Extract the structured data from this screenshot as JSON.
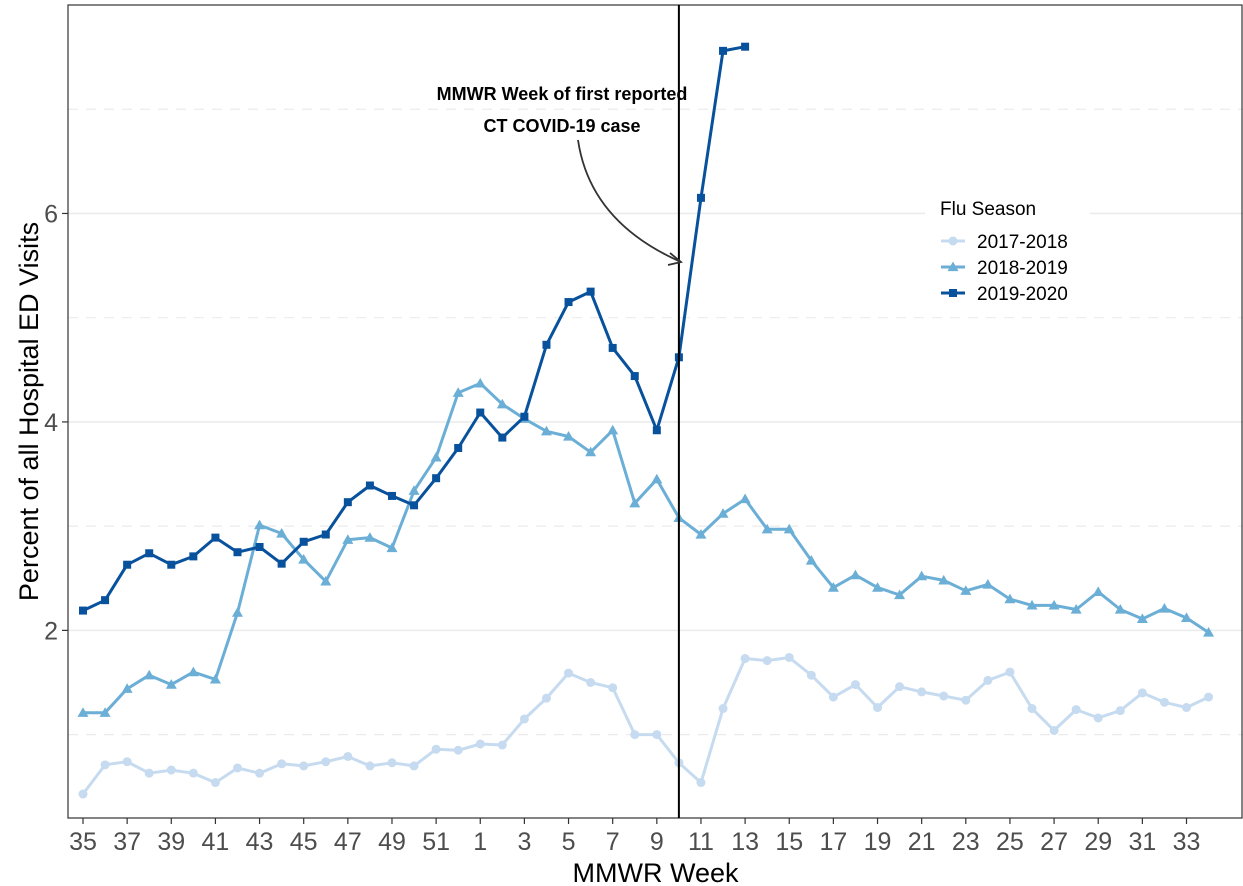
{
  "chart_data": {
    "type": "line",
    "xlabel": "MMWR Week",
    "ylabel": "Percent of all Hospital ED Visits",
    "x_tick_labels": [
      "35",
      "37",
      "39",
      "41",
      "43",
      "45",
      "47",
      "49",
      "51",
      "1",
      "3",
      "5",
      "7",
      "9",
      "11",
      "13",
      "15",
      "17",
      "19",
      "21",
      "23",
      "25",
      "27",
      "29",
      "31",
      "33"
    ],
    "y_tick_labels": [
      "2",
      "4",
      "6"
    ],
    "y_ticks": [
      2,
      4,
      6
    ],
    "ylim": [
      0.2,
      8.0
    ],
    "grid": "horizontal",
    "legend": {
      "title": "Flu Season",
      "position": "right"
    },
    "annotation": {
      "lines": [
        "MMWR Week of first reported",
        "CT COVID-19 case"
      ],
      "marks_week": "10"
    },
    "x": [
      "35",
      "36",
      "37",
      "38",
      "39",
      "40",
      "41",
      "42",
      "43",
      "44",
      "45",
      "46",
      "47",
      "48",
      "49",
      "50",
      "51",
      "52",
      "1",
      "2",
      "3",
      "4",
      "5",
      "6",
      "7",
      "8",
      "9",
      "10",
      "11",
      "12",
      "13",
      "14",
      "15",
      "16",
      "17",
      "18",
      "19",
      "20",
      "21",
      "22",
      "23",
      "24",
      "25",
      "26",
      "27",
      "28",
      "29",
      "30",
      "31",
      "32",
      "33",
      "34"
    ],
    "series": [
      {
        "name": "2017-2018",
        "color": "#c6dbef",
        "marker": "circle",
        "values": [
          0.43,
          0.71,
          0.74,
          0.63,
          0.66,
          0.63,
          0.54,
          0.68,
          0.63,
          0.72,
          0.7,
          0.74,
          0.79,
          0.7,
          0.73,
          0.7,
          0.86,
          0.85,
          0.91,
          0.9,
          1.15,
          1.35,
          1.59,
          1.5,
          1.45,
          1.0,
          1.0,
          0.73,
          0.54,
          1.25,
          1.73,
          1.71,
          1.74,
          1.57,
          1.36,
          1.48,
          1.26,
          1.46,
          1.41,
          1.37,
          1.33,
          1.52,
          1.6,
          1.25,
          1.04,
          1.24,
          1.16,
          1.23,
          1.4,
          1.31,
          1.26,
          1.36
        ]
      },
      {
        "name": "2018-2019",
        "color": "#6baed6",
        "marker": "triangle",
        "values": [
          1.21,
          1.21,
          1.44,
          1.57,
          1.48,
          1.6,
          1.53,
          2.17,
          3.01,
          2.93,
          2.68,
          2.47,
          2.87,
          2.89,
          2.79,
          3.34,
          3.66,
          4.28,
          4.37,
          4.17,
          4.03,
          3.91,
          3.86,
          3.71,
          3.92,
          3.22,
          3.45,
          3.08,
          2.92,
          3.12,
          3.26,
          2.97,
          2.97,
          2.67,
          2.41,
          2.53,
          2.41,
          2.34,
          2.52,
          2.48,
          2.38,
          2.44,
          2.3,
          2.24,
          2.24,
          2.2,
          2.37,
          2.2,
          2.11,
          2.21,
          2.12,
          1.98
        ]
      },
      {
        "name": "2019-2020",
        "color": "#08519c",
        "marker": "square",
        "values": [
          2.19,
          2.29,
          2.63,
          2.74,
          2.63,
          2.71,
          2.89,
          2.75,
          2.8,
          2.64,
          2.85,
          2.92,
          3.23,
          3.39,
          3.29,
          3.2,
          3.46,
          3.75,
          4.09,
          3.85,
          4.05,
          4.74,
          5.15,
          5.25,
          4.71,
          4.44,
          3.92,
          4.62,
          6.15,
          7.56,
          7.6,
          null,
          null,
          null,
          null,
          null,
          null,
          null,
          null,
          null,
          null,
          null,
          null,
          null,
          null,
          null,
          null,
          null,
          null,
          null,
          null,
          null
        ]
      }
    ]
  }
}
